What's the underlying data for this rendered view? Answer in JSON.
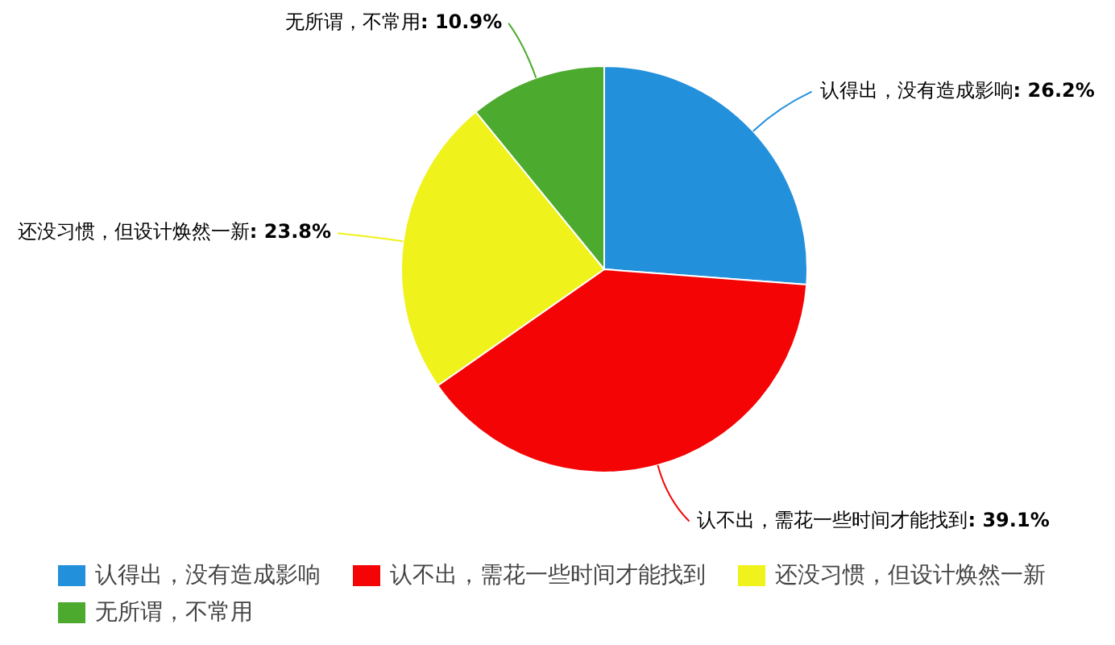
{
  "chart_data": {
    "type": "pie",
    "categories": [
      "认得出，没有造成影响",
      "认不出，需花一些时间才能找到",
      "还没习惯，但设计焕然一新",
      "无所谓，不常用"
    ],
    "values": [
      26.2,
      39.1,
      23.8,
      10.9
    ],
    "colors": [
      "#2390dc",
      "#f40404",
      "#eff21b",
      "#4caa2e"
    ],
    "value_labels": [
      ": 26.2%",
      ": 39.1%",
      ": 23.8%",
      ": 10.9%"
    ],
    "legend": "bottom"
  }
}
